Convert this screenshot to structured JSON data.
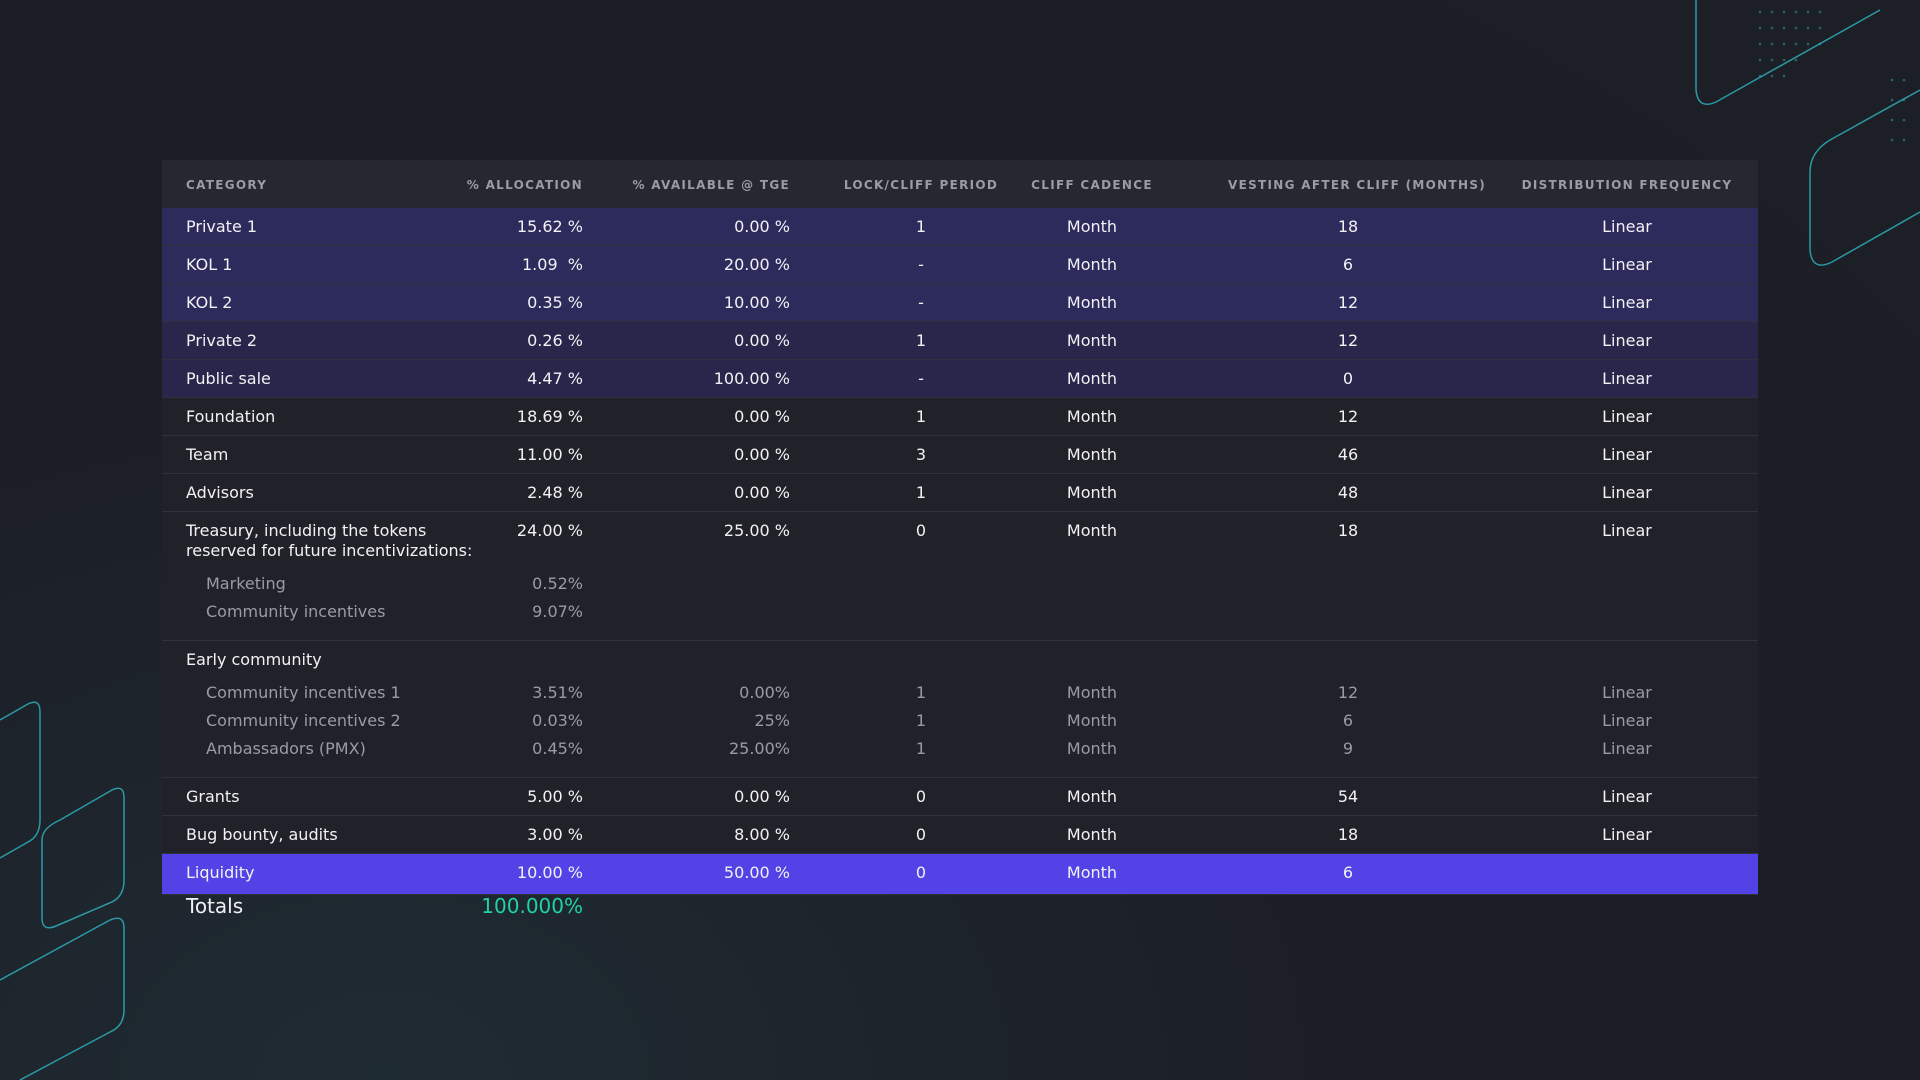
{
  "table": {
    "headers": [
      "CATEGORY",
      "% ALLOCATION",
      "% AVAILABLE @ TGE",
      "LOCK/CLIFF PERIOD",
      "CLIFF CADENCE",
      "VESTING AFTER CLIFF (MONTHS)",
      "DISTRIBUTION FREQUENCY"
    ],
    "rows": [
      {
        "cells": [
          "Private 1",
          "15.62 %",
          "0.00 %",
          "1",
          "Month",
          "18",
          "Linear"
        ],
        "color": "#2d2a5c"
      },
      {
        "cells": [
          "KOL 1",
          "1.09  %",
          "20.00 %",
          "-",
          "Month",
          "6",
          "Linear"
        ],
        "color": "#2d2a5c"
      },
      {
        "cells": [
          "KOL 2",
          "0.35 %",
          "10.00 %",
          "-",
          "Month",
          "12",
          "Linear"
        ],
        "color": "#2d2a5c"
      },
      {
        "cells": [
          "Private 2",
          "0.26 %",
          "0.00 %",
          "1",
          "Month",
          "12",
          "Linear"
        ],
        "color": "#28264a"
      },
      {
        "cells": [
          "Public sale",
          "4.47 %",
          "100.00 %",
          "-",
          "Month",
          "0",
          "Linear"
        ],
        "color": "#28264a"
      },
      {
        "cells": [
          "Foundation",
          "18.69 %",
          "0.00 %",
          "1",
          "Month",
          "12",
          "Linear"
        ]
      },
      {
        "cells": [
          "Team",
          "11.00 %",
          "0.00 %",
          "3",
          "Month",
          "46",
          "Linear"
        ]
      },
      {
        "cells": [
          "Advisors",
          "2.48 %",
          "0.00 %",
          "1",
          "Month",
          "48",
          "Linear"
        ]
      },
      {
        "cells": [
          "Treasury, including the tokens\nreserved for future incentivizations:",
          "24.00 %",
          "25.00 %",
          "0",
          "Month",
          "18",
          "Linear"
        ],
        "sub": [
          [
            "Marketing",
            "0.52%"
          ],
          [
            "Community incentives",
            "9.07%"
          ]
        ]
      },
      {
        "cells": [
          "Early community"
        ],
        "sub": [
          [
            "Community incentives 1",
            "3.51%",
            "0.00%",
            "1",
            "Month",
            "12",
            "Linear"
          ],
          [
            "Community incentives 2",
            "0.03%",
            "25%",
            "1",
            "Month",
            "6",
            "Linear"
          ],
          [
            "Ambassadors (PMX)",
            "0.45%",
            "25.00%",
            "1",
            "Month",
            "9",
            "Linear"
          ]
        ]
      },
      {
        "cells": [
          "Grants",
          "5.00 %",
          "0.00 %",
          "0",
          "Month",
          "54",
          "Linear"
        ]
      },
      {
        "cells": [
          "Bug bounty, audits",
          "3.00 %",
          "8.00 %",
          "0",
          "Month",
          "18",
          "Linear"
        ]
      },
      {
        "cells": [
          "Liquidity",
          "10.00 %",
          "50.00 %",
          "0",
          "Month",
          "6"
        ],
        "color": "#5343e6"
      }
    ],
    "totals": {
      "label": "Totals",
      "value": "100.000%"
    }
  }
}
